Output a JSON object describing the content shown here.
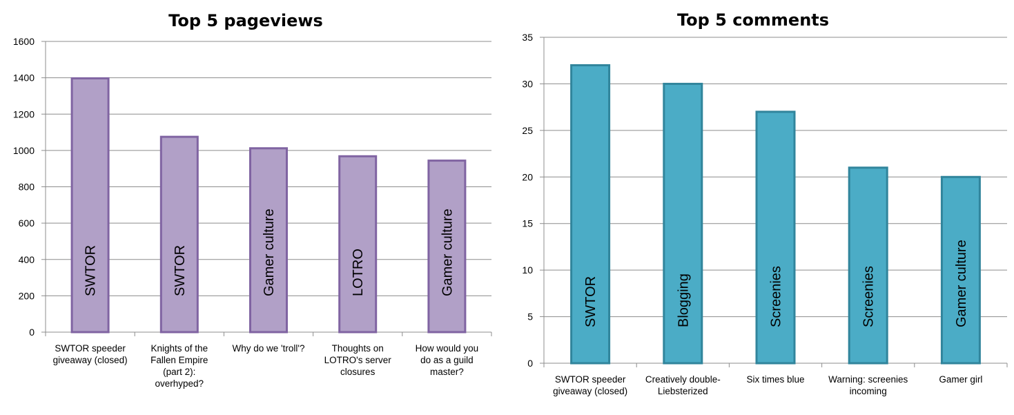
{
  "chart_data": [
    {
      "type": "bar",
      "title": "Top 5 pageviews",
      "categories": [
        [
          "SWTOR speeder",
          "giveaway (closed)"
        ],
        [
          "Knights of the",
          "Fallen Empire",
          "(part 2):",
          "overhyped?"
        ],
        [
          "Why do we 'troll'?"
        ],
        [
          "Thoughts on",
          "LOTRO's server",
          "closures"
        ],
        [
          "How would you",
          "do as a guild",
          "master?"
        ]
      ],
      "values": [
        1397,
        1075,
        1012,
        968,
        944
      ],
      "bar_labels": [
        "SWTOR",
        "SWTOR",
        "Gamer culture",
        "LOTRO",
        "Gamer culture"
      ],
      "ylim": [
        0,
        1600
      ],
      "yticks": [
        0,
        200,
        400,
        600,
        800,
        1000,
        1200,
        1400,
        1600
      ],
      "grid": true,
      "colors": {
        "fill": "#b1a0c7",
        "stroke": "#8064a2"
      }
    },
    {
      "type": "bar",
      "title": "Top 5 comments",
      "categories": [
        [
          "SWTOR speeder",
          "giveaway (closed)"
        ],
        [
          "Creatively double-",
          "Liebsterized"
        ],
        [
          "Six times blue"
        ],
        [
          "Warning: screenies",
          "incoming"
        ],
        [
          "Gamer girl"
        ]
      ],
      "values": [
        32,
        30,
        27,
        21,
        20
      ],
      "bar_labels": [
        "SWTOR",
        "Blogging",
        "Screenies",
        "Screenies",
        "Gamer culture"
      ],
      "ylim": [
        0,
        35
      ],
      "yticks": [
        0,
        5,
        10,
        15,
        20,
        25,
        30,
        35
      ],
      "grid": true,
      "colors": {
        "fill": "#4bacc6",
        "stroke": "#31859c"
      }
    }
  ]
}
